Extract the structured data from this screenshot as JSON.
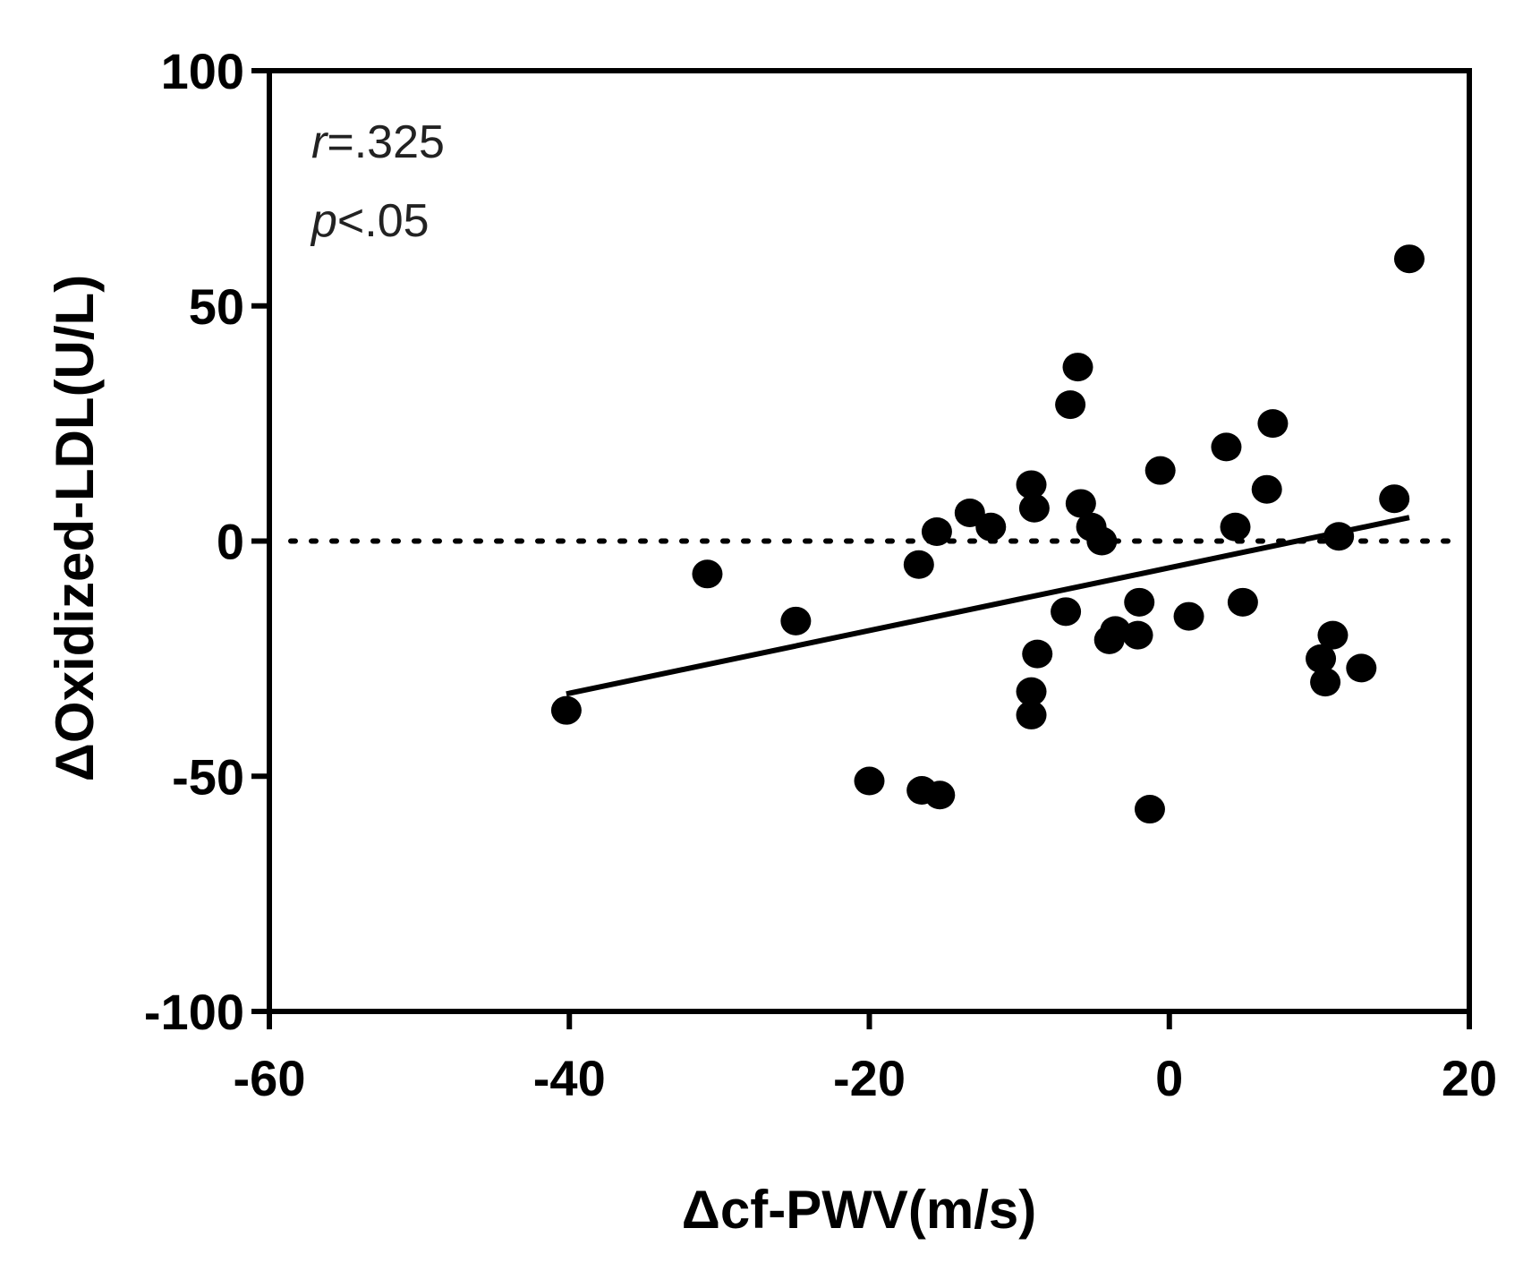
{
  "chart_data": {
    "type": "scatter",
    "xlabel": "Δcf-PWV(m/s)",
    "ylabel": "ΔOxidized-LDL(U/L)",
    "xlim": [
      -60,
      20
    ],
    "ylim": [
      -100,
      100
    ],
    "xticks": [
      "-60",
      "-40",
      "-20",
      "0",
      "20"
    ],
    "yticks": [
      "100",
      "50",
      "0",
      "-50",
      "-100"
    ],
    "xtick_values": [
      -60,
      -40,
      -20,
      0,
      20
    ],
    "ytick_values": [
      100,
      50,
      0,
      -50,
      -100
    ],
    "reference_line_y": 0,
    "annotations": {
      "r_symbol": "r",
      "r_value": "=.325",
      "p_symbol": "p",
      "p_value": "<.05"
    },
    "points": [
      {
        "x": -40.2,
        "y": -36
      },
      {
        "x": -30.8,
        "y": -7
      },
      {
        "x": -24.9,
        "y": -17
      },
      {
        "x": -20.0,
        "y": -51
      },
      {
        "x": -16.7,
        "y": -5
      },
      {
        "x": -16.5,
        "y": -53
      },
      {
        "x": -15.5,
        "y": 2
      },
      {
        "x": -15.3,
        "y": -54
      },
      {
        "x": -13.3,
        "y": 6
      },
      {
        "x": -11.9,
        "y": 3
      },
      {
        "x": -9.2,
        "y": 12
      },
      {
        "x": -9.0,
        "y": 7
      },
      {
        "x": -9.2,
        "y": -32
      },
      {
        "x": -9.2,
        "y": -37
      },
      {
        "x": -8.8,
        "y": -24
      },
      {
        "x": -6.9,
        "y": -15
      },
      {
        "x": -6.6,
        "y": 29
      },
      {
        "x": -6.1,
        "y": 37
      },
      {
        "x": -5.9,
        "y": 8
      },
      {
        "x": -5.2,
        "y": 3
      },
      {
        "x": -4.5,
        "y": 0
      },
      {
        "x": -4.0,
        "y": -21
      },
      {
        "x": -3.6,
        "y": -19
      },
      {
        "x": -2.1,
        "y": -20
      },
      {
        "x": -2.0,
        "y": -13
      },
      {
        "x": -1.3,
        "y": -57
      },
      {
        "x": -0.6,
        "y": 15
      },
      {
        "x": 1.3,
        "y": -16
      },
      {
        "x": 3.8,
        "y": 20
      },
      {
        "x": 4.4,
        "y": 3
      },
      {
        "x": 4.9,
        "y": -13
      },
      {
        "x": 6.5,
        "y": 11
      },
      {
        "x": 6.9,
        "y": 25
      },
      {
        "x": 10.1,
        "y": -25
      },
      {
        "x": 10.4,
        "y": -30
      },
      {
        "x": 10.9,
        "y": -20
      },
      {
        "x": 11.3,
        "y": 1
      },
      {
        "x": 12.8,
        "y": -27
      },
      {
        "x": 15.0,
        "y": 9
      },
      {
        "x": 16.0,
        "y": 60
      }
    ],
    "regression_line": {
      "x1": -40.2,
      "y1": -32.5,
      "x2": 16.0,
      "y2": 5.0
    }
  }
}
